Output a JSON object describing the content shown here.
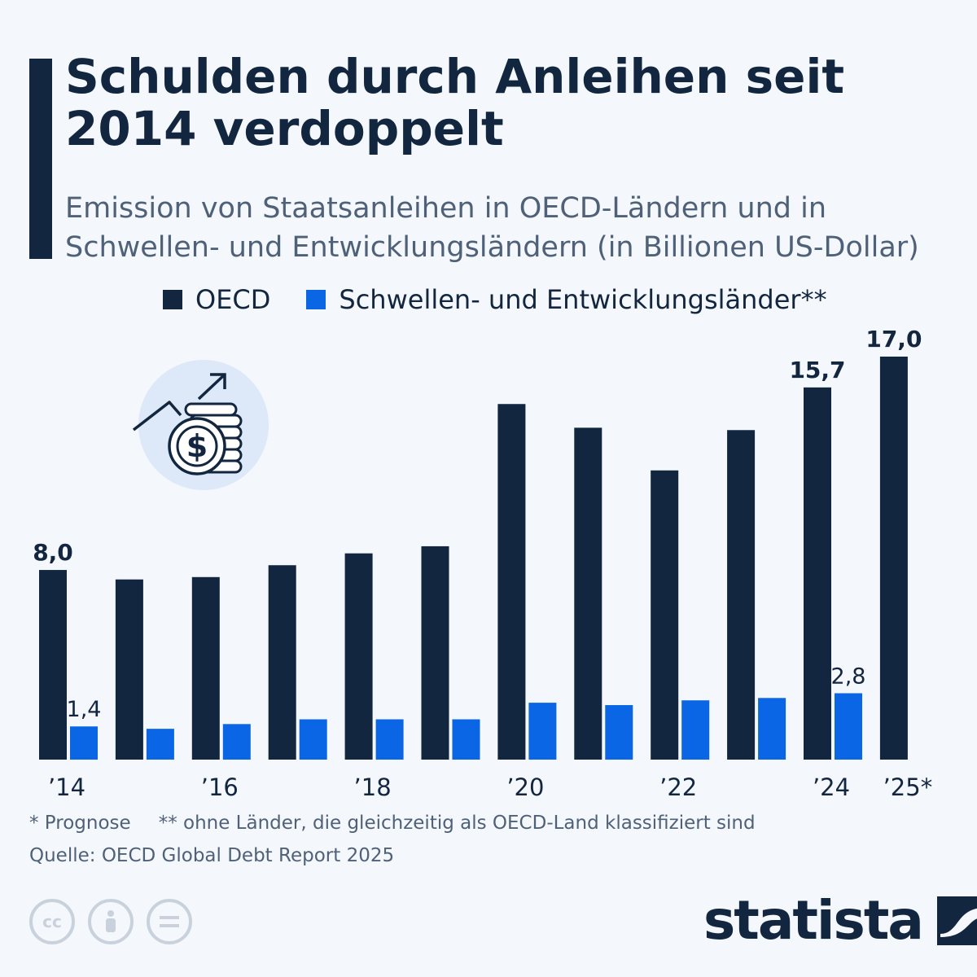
{
  "header": {
    "title": "Schulden durch Anleihen seit 2014 verdoppelt",
    "subtitle": "Emission von Staatsanleihen in OECD-Ländern und in Schwellen- und Entwicklungsländern (in Billionen US-Dollar)"
  },
  "legend": {
    "oecd": "OECD",
    "emerging": "Schwellen- und Entwicklungsländer**"
  },
  "colors": {
    "oecd": "#12263f",
    "emerging": "#0a66e4",
    "accent": "#12263f",
    "icon_bg": "#dde9f8"
  },
  "icon": "money-growth-icon",
  "chart_data": {
    "type": "bar",
    "categories": [
      "2014",
      "2015",
      "2016",
      "2017",
      "2018",
      "2019",
      "2020",
      "2021",
      "2022",
      "2023",
      "2024",
      "2025*"
    ],
    "tick_labels": [
      "’14",
      "",
      "’16",
      "",
      "’18",
      "",
      "’20",
      "",
      "’22",
      "",
      "’24",
      "’25*"
    ],
    "series": [
      {
        "name": "OECD",
        "values": [
          8.0,
          7.6,
          7.7,
          8.2,
          8.7,
          9.0,
          15.0,
          14.0,
          12.2,
          13.9,
          15.7,
          17.0
        ],
        "data_labels": [
          "8,0",
          "",
          "",
          "",
          "",
          "",
          "",
          "",
          "",
          "",
          "15,7",
          "17,0"
        ]
      },
      {
        "name": "Schwellen- und Entwicklungsländer**",
        "values": [
          1.4,
          1.3,
          1.5,
          1.7,
          1.7,
          1.7,
          2.4,
          2.3,
          2.5,
          2.6,
          2.8,
          null
        ],
        "data_labels": [
          "1,4",
          "",
          "",
          "",
          "",
          "",
          "",
          "",
          "",
          "",
          "2,8",
          ""
        ]
      }
    ],
    "ylim": [
      0,
      17.5
    ],
    "grid": false,
    "legend_position": "top"
  },
  "footer": {
    "note1": "* Prognose",
    "note2": "** ohne Länder, die gleichzeitig als OECD-Land klassifiziert sind",
    "source": "Quelle: OECD Global Debt Report 2025",
    "brand": "statista",
    "license_icons": [
      "cc-icon",
      "person-icon",
      "equals-icon"
    ]
  }
}
